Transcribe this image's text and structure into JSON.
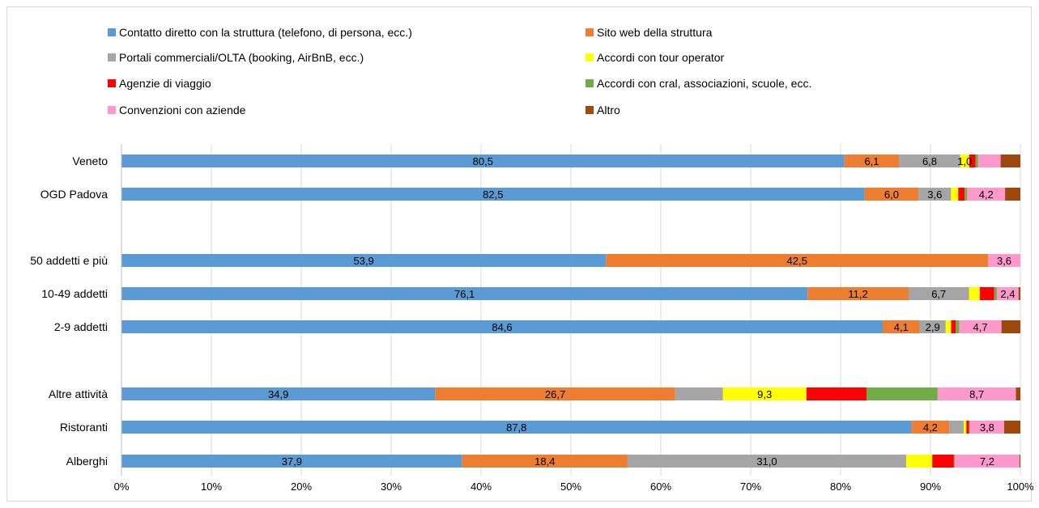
{
  "chart_data": {
    "type": "bar",
    "orientation": "horizontal",
    "stacked": "percent",
    "categories": [
      "Veneto",
      "OGD Padova",
      "50 addetti e più",
      "10-49  addetti",
      "2-9 addetti",
      "Altre attività",
      "Ristoranti",
      "Alberghi"
    ],
    "xticks": [
      "0%",
      "10%",
      "20%",
      "30%",
      "40%",
      "50%",
      "60%",
      "70%",
      "80%",
      "90%",
      "100%"
    ],
    "xlim": [
      0,
      100
    ],
    "grid": true,
    "legend_position": "top",
    "series": [
      {
        "name": "Contatto diretto con la struttura (telefono, di persona, ecc.)",
        "color": "#5b9bd5",
        "values": [
          80.5,
          82.5,
          53.9,
          76.1,
          84.6,
          34.9,
          87.8,
          37.9
        ],
        "labels": [
          "80,5",
          "82,5",
          "53,9",
          "76,1",
          "84,6",
          "34,9",
          "87,8",
          "37,9"
        ]
      },
      {
        "name": "Sito web della struttura",
        "color": "#ed7d31",
        "values": [
          6.1,
          6.0,
          42.5,
          11.2,
          4.1,
          26.7,
          4.2,
          18.4
        ],
        "labels": [
          "6,1",
          "6,0",
          "42,5",
          "11,2",
          "4,1",
          "26,7",
          "4,2",
          "18,4"
        ]
      },
      {
        "name": "Portali commerciali/OLTA (booking, AirBnB, ecc.)",
        "color": "#a5a5a5",
        "values": [
          6.8,
          3.6,
          0,
          6.7,
          2.9,
          5.3,
          1.6,
          31.0
        ],
        "labels": [
          "6,8",
          "3,6",
          "",
          "6,7",
          "2,9",
          "",
          "",
          "31,0"
        ]
      },
      {
        "name": "Accordi con tour operator",
        "color": "#ffff00",
        "values": [
          1.0,
          0.8,
          0,
          1.2,
          0.6,
          9.3,
          0.3,
          2.9
        ],
        "labels": [
          "1,0",
          "",
          "",
          "",
          "",
          "9,3",
          "",
          ""
        ]
      },
      {
        "name": "Agenzie di viaggio",
        "color": "#ff0000",
        "values": [
          0.7,
          0.7,
          0,
          1.6,
          0.5,
          6.7,
          0.3,
          2.4
        ],
        "labels": [
          "",
          "",
          "",
          "",
          "",
          "",
          "",
          ""
        ]
      },
      {
        "name": "Accordi con cral, associazioni, scuole, ecc.",
        "color": "#70ad47",
        "values": [
          0.3,
          0.3,
          0,
          0.3,
          0.4,
          7.9,
          0.1,
          0.1
        ],
        "labels": [
          "",
          "",
          "",
          "",
          "",
          "",
          "",
          ""
        ]
      },
      {
        "name": "Convenzioni con aziende",
        "color": "#ff99cc",
        "values": [
          2.5,
          4.2,
          3.6,
          2.4,
          4.7,
          8.7,
          3.8,
          7.2
        ],
        "labels": [
          "",
          "4,2",
          "3,6",
          "2,4",
          "4,7",
          "8,7",
          "3,8",
          "7,2"
        ]
      },
      {
        "name": "Altro",
        "color": "#9e480e",
        "values": [
          2.2,
          1.7,
          0,
          0.2,
          2.1,
          0.5,
          1.8,
          0.1
        ],
        "labels": [
          "",
          "",
          "",
          "",
          "",
          "",
          "",
          ""
        ]
      }
    ]
  }
}
